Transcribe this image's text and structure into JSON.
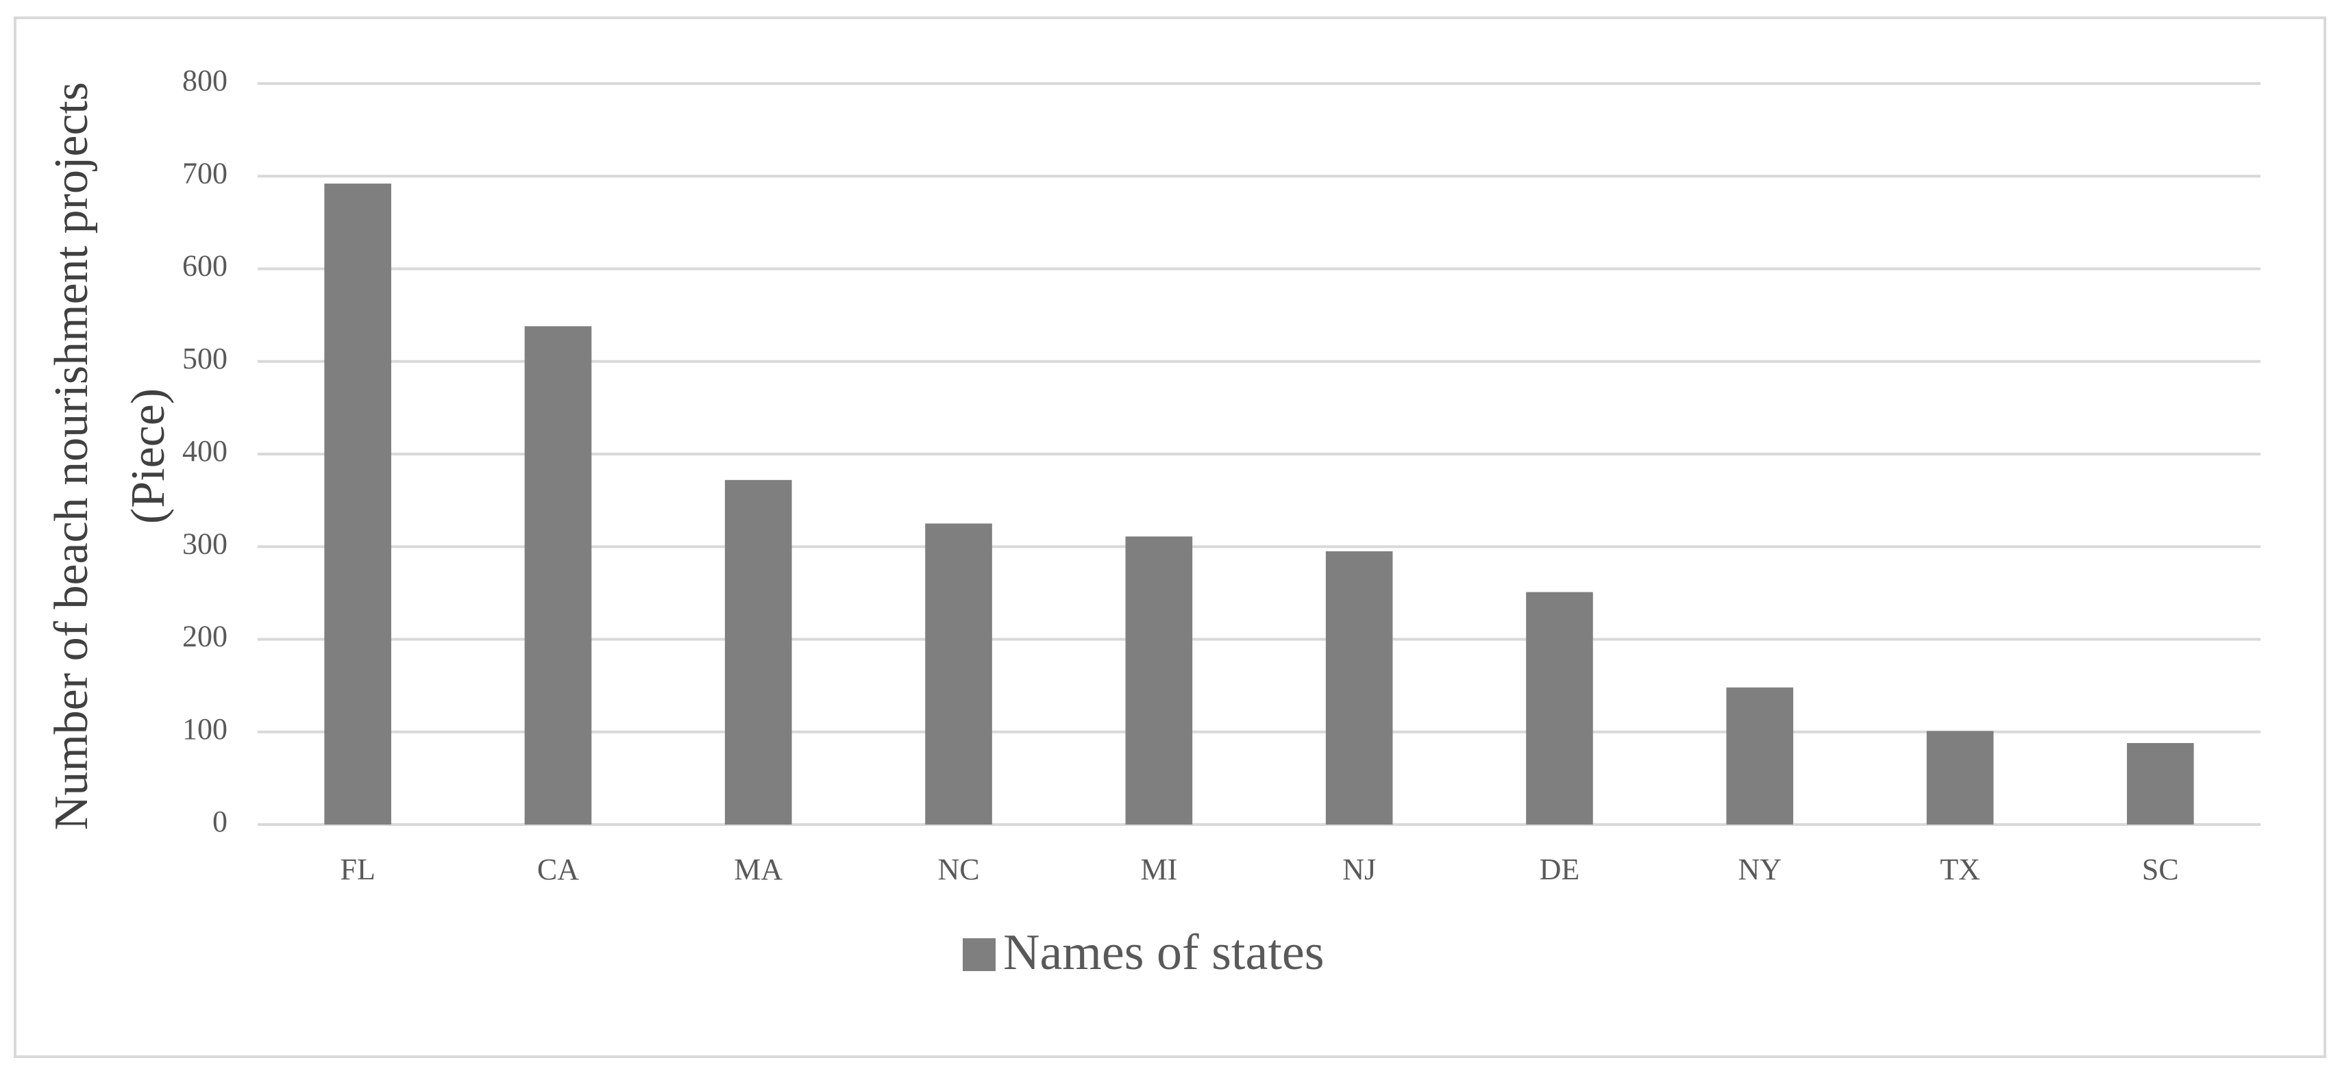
{
  "chart_data": {
    "type": "bar",
    "y_label": "Number of beach nourishment projects (Piece)",
    "categories": [
      "FL",
      "CA",
      "MA",
      "NC",
      "MI",
      "NJ",
      "DE",
      "NY",
      "TX",
      "SC"
    ],
    "series": [
      {
        "name": "Names of states",
        "color": "#7f7f7f",
        "values": [
          692,
          538,
          372,
          325,
          311,
          295,
          251,
          148,
          101,
          88
        ]
      }
    ],
    "ylim": [
      0,
      800
    ],
    "yticks": [
      0,
      100,
      200,
      300,
      400,
      500,
      600,
      700,
      800
    ],
    "grid": true,
    "legend": "bottom"
  }
}
